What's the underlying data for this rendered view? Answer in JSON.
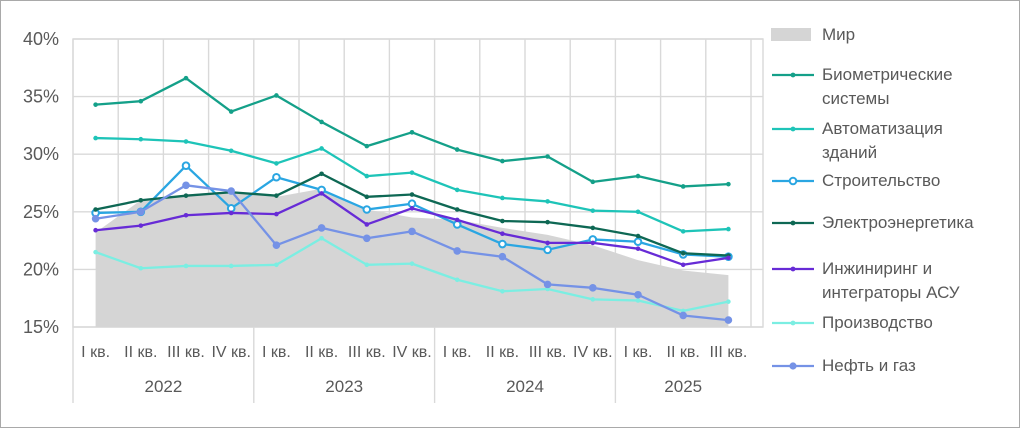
{
  "chart_data": {
    "type": "area+line",
    "title": "",
    "xlabel": "",
    "ylabel": "",
    "ylim": [
      15,
      40
    ],
    "grid": true,
    "legend_position": "right",
    "y_tick_labels": [
      "40%",
      "35%",
      "30%",
      "25%",
      "20%",
      "15%"
    ],
    "y_tick_values": [
      40,
      35,
      30,
      25,
      20,
      15
    ],
    "quarter_labels": [
      "I кв.",
      "II кв.",
      "III кв.",
      "IV кв.",
      "I кв.",
      "II кв.",
      "III кв.",
      "IV кв.",
      "I кв.",
      "II кв.",
      "III кв.",
      "IV кв.",
      "I кв.",
      "II кв.",
      "III кв."
    ],
    "year_groups": [
      {
        "label": "2022",
        "quarters": 4
      },
      {
        "label": "2023",
        "quarters": 4
      },
      {
        "label": "2024",
        "quarters": 4
      },
      {
        "label": "2025",
        "quarters": 3
      }
    ],
    "area_series": {
      "id": "mir",
      "name": "Мир",
      "legend_lines": [
        "Мир"
      ],
      "color": "#d5d5d5",
      "values": [
        23.2,
        26.0,
        26.5,
        26.8,
        26.3,
        27.0,
        25.2,
        24.5,
        24.3,
        23.6,
        23.0,
        22.1,
        20.8,
        19.9,
        19.5
      ]
    },
    "series": [
      {
        "id": "biometric",
        "name": "Биометрические системы",
        "legend_lines": [
          "Биометрические",
          "системы"
        ],
        "color": "#14a089",
        "marker": "dot",
        "values": [
          34.3,
          34.6,
          36.6,
          33.7,
          35.1,
          32.8,
          30.7,
          31.9,
          30.4,
          29.4,
          29.8,
          27.6,
          28.1,
          27.2,
          27.4
        ]
      },
      {
        "id": "building-automation",
        "name": "Автоматизация зданий",
        "legend_lines": [
          "Автоматизация",
          "зданий"
        ],
        "color": "#1ec4b8",
        "marker": "dot",
        "values": [
          31.4,
          31.3,
          31.1,
          30.3,
          29.2,
          30.5,
          28.1,
          28.4,
          26.9,
          26.2,
          25.9,
          25.1,
          25.0,
          23.3,
          23.5
        ]
      },
      {
        "id": "construction",
        "name": "Строительство",
        "legend_lines": [
          "Строительство"
        ],
        "color": "#2aa6e2",
        "marker": "open-circle",
        "values": [
          24.9,
          25.0,
          29.0,
          25.3,
          28.0,
          26.9,
          25.2,
          25.7,
          23.9,
          22.2,
          21.7,
          22.6,
          22.4,
          21.3,
          21.1
        ]
      },
      {
        "id": "power",
        "name": "Электроэнергетика",
        "legend_lines": [
          "Электроэнергетика"
        ],
        "color": "#0e6854",
        "marker": "dot",
        "values": [
          25.2,
          26.0,
          26.4,
          26.7,
          26.4,
          28.3,
          26.3,
          26.5,
          25.2,
          24.2,
          24.1,
          23.6,
          22.9,
          21.4,
          21.2
        ]
      },
      {
        "id": "engineering",
        "name": "Инжиниринг и интеграторы АСУ",
        "legend_lines": [
          "Инжиниринг и",
          "интеграторы АСУ"
        ],
        "color": "#672bd6",
        "marker": "dot",
        "values": [
          23.4,
          23.8,
          24.7,
          24.9,
          24.8,
          26.6,
          23.9,
          25.3,
          24.3,
          23.1,
          22.3,
          22.3,
          21.8,
          20.4,
          21.0
        ]
      },
      {
        "id": "manufacturing",
        "name": "Производство",
        "legend_lines": [
          "Производство"
        ],
        "color": "#7beee2",
        "marker": "dot",
        "values": [
          21.5,
          20.1,
          20.3,
          20.3,
          20.4,
          22.7,
          20.4,
          20.5,
          19.1,
          18.1,
          18.3,
          17.4,
          17.3,
          16.4,
          17.2
        ]
      },
      {
        "id": "oil-gas",
        "name": "Нефть и газ",
        "legend_lines": [
          "Нефть и газ"
        ],
        "color": "#7592e6",
        "marker": "dot-lg",
        "values": [
          24.4,
          25.0,
          27.3,
          26.8,
          22.1,
          23.6,
          22.7,
          23.3,
          21.6,
          21.1,
          18.7,
          18.4,
          17.8,
          16.0,
          15.6
        ]
      }
    ],
    "colors": {
      "grid": "#d9d9d9",
      "axis_text": "#595959",
      "background": "#ffffff"
    }
  }
}
